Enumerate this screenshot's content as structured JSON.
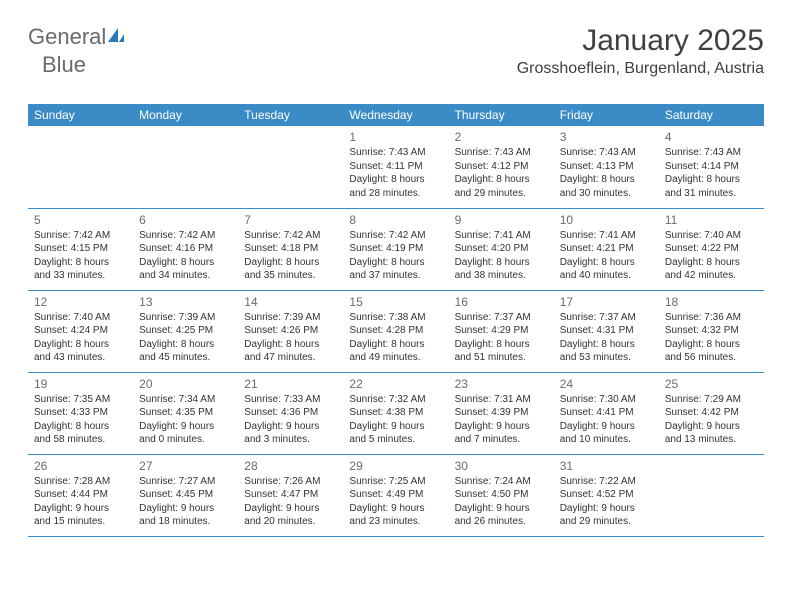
{
  "brand": {
    "text_part1": "General",
    "text_part2": "Blue",
    "color_gray": "#6a6a6a",
    "color_blue": "#2a7ab8"
  },
  "header": {
    "month_title": "January 2025",
    "location": "Grosshoeflein, Burgenland, Austria",
    "title_color": "#404040",
    "title_fontsize": 30,
    "location_fontsize": 16
  },
  "style": {
    "header_bg": "#3b8bc7",
    "header_text_color": "#ffffff",
    "row_border_color": "#3b8bc7",
    "daynum_color": "#6b6b6b",
    "body_text_color": "#333333",
    "cell_fontsize": 10,
    "th_fontsize": 12,
    "background_color": "#ffffff"
  },
  "weekdays": [
    "Sunday",
    "Monday",
    "Tuesday",
    "Wednesday",
    "Thursday",
    "Friday",
    "Saturday"
  ],
  "weeks": [
    [
      null,
      null,
      null,
      {
        "day": "1",
        "sunrise": "Sunrise: 7:43 AM",
        "sunset": "Sunset: 4:11 PM",
        "dl1": "Daylight: 8 hours",
        "dl2": "and 28 minutes."
      },
      {
        "day": "2",
        "sunrise": "Sunrise: 7:43 AM",
        "sunset": "Sunset: 4:12 PM",
        "dl1": "Daylight: 8 hours",
        "dl2": "and 29 minutes."
      },
      {
        "day": "3",
        "sunrise": "Sunrise: 7:43 AM",
        "sunset": "Sunset: 4:13 PM",
        "dl1": "Daylight: 8 hours",
        "dl2": "and 30 minutes."
      },
      {
        "day": "4",
        "sunrise": "Sunrise: 7:43 AM",
        "sunset": "Sunset: 4:14 PM",
        "dl1": "Daylight: 8 hours",
        "dl2": "and 31 minutes."
      }
    ],
    [
      {
        "day": "5",
        "sunrise": "Sunrise: 7:42 AM",
        "sunset": "Sunset: 4:15 PM",
        "dl1": "Daylight: 8 hours",
        "dl2": "and 33 minutes."
      },
      {
        "day": "6",
        "sunrise": "Sunrise: 7:42 AM",
        "sunset": "Sunset: 4:16 PM",
        "dl1": "Daylight: 8 hours",
        "dl2": "and 34 minutes."
      },
      {
        "day": "7",
        "sunrise": "Sunrise: 7:42 AM",
        "sunset": "Sunset: 4:18 PM",
        "dl1": "Daylight: 8 hours",
        "dl2": "and 35 minutes."
      },
      {
        "day": "8",
        "sunrise": "Sunrise: 7:42 AM",
        "sunset": "Sunset: 4:19 PM",
        "dl1": "Daylight: 8 hours",
        "dl2": "and 37 minutes."
      },
      {
        "day": "9",
        "sunrise": "Sunrise: 7:41 AM",
        "sunset": "Sunset: 4:20 PM",
        "dl1": "Daylight: 8 hours",
        "dl2": "and 38 minutes."
      },
      {
        "day": "10",
        "sunrise": "Sunrise: 7:41 AM",
        "sunset": "Sunset: 4:21 PM",
        "dl1": "Daylight: 8 hours",
        "dl2": "and 40 minutes."
      },
      {
        "day": "11",
        "sunrise": "Sunrise: 7:40 AM",
        "sunset": "Sunset: 4:22 PM",
        "dl1": "Daylight: 8 hours",
        "dl2": "and 42 minutes."
      }
    ],
    [
      {
        "day": "12",
        "sunrise": "Sunrise: 7:40 AM",
        "sunset": "Sunset: 4:24 PM",
        "dl1": "Daylight: 8 hours",
        "dl2": "and 43 minutes."
      },
      {
        "day": "13",
        "sunrise": "Sunrise: 7:39 AM",
        "sunset": "Sunset: 4:25 PM",
        "dl1": "Daylight: 8 hours",
        "dl2": "and 45 minutes."
      },
      {
        "day": "14",
        "sunrise": "Sunrise: 7:39 AM",
        "sunset": "Sunset: 4:26 PM",
        "dl1": "Daylight: 8 hours",
        "dl2": "and 47 minutes."
      },
      {
        "day": "15",
        "sunrise": "Sunrise: 7:38 AM",
        "sunset": "Sunset: 4:28 PM",
        "dl1": "Daylight: 8 hours",
        "dl2": "and 49 minutes."
      },
      {
        "day": "16",
        "sunrise": "Sunrise: 7:37 AM",
        "sunset": "Sunset: 4:29 PM",
        "dl1": "Daylight: 8 hours",
        "dl2": "and 51 minutes."
      },
      {
        "day": "17",
        "sunrise": "Sunrise: 7:37 AM",
        "sunset": "Sunset: 4:31 PM",
        "dl1": "Daylight: 8 hours",
        "dl2": "and 53 minutes."
      },
      {
        "day": "18",
        "sunrise": "Sunrise: 7:36 AM",
        "sunset": "Sunset: 4:32 PM",
        "dl1": "Daylight: 8 hours",
        "dl2": "and 56 minutes."
      }
    ],
    [
      {
        "day": "19",
        "sunrise": "Sunrise: 7:35 AM",
        "sunset": "Sunset: 4:33 PM",
        "dl1": "Daylight: 8 hours",
        "dl2": "and 58 minutes."
      },
      {
        "day": "20",
        "sunrise": "Sunrise: 7:34 AM",
        "sunset": "Sunset: 4:35 PM",
        "dl1": "Daylight: 9 hours",
        "dl2": "and 0 minutes."
      },
      {
        "day": "21",
        "sunrise": "Sunrise: 7:33 AM",
        "sunset": "Sunset: 4:36 PM",
        "dl1": "Daylight: 9 hours",
        "dl2": "and 3 minutes."
      },
      {
        "day": "22",
        "sunrise": "Sunrise: 7:32 AM",
        "sunset": "Sunset: 4:38 PM",
        "dl1": "Daylight: 9 hours",
        "dl2": "and 5 minutes."
      },
      {
        "day": "23",
        "sunrise": "Sunrise: 7:31 AM",
        "sunset": "Sunset: 4:39 PM",
        "dl1": "Daylight: 9 hours",
        "dl2": "and 7 minutes."
      },
      {
        "day": "24",
        "sunrise": "Sunrise: 7:30 AM",
        "sunset": "Sunset: 4:41 PM",
        "dl1": "Daylight: 9 hours",
        "dl2": "and 10 minutes."
      },
      {
        "day": "25",
        "sunrise": "Sunrise: 7:29 AM",
        "sunset": "Sunset: 4:42 PM",
        "dl1": "Daylight: 9 hours",
        "dl2": "and 13 minutes."
      }
    ],
    [
      {
        "day": "26",
        "sunrise": "Sunrise: 7:28 AM",
        "sunset": "Sunset: 4:44 PM",
        "dl1": "Daylight: 9 hours",
        "dl2": "and 15 minutes."
      },
      {
        "day": "27",
        "sunrise": "Sunrise: 7:27 AM",
        "sunset": "Sunset: 4:45 PM",
        "dl1": "Daylight: 9 hours",
        "dl2": "and 18 minutes."
      },
      {
        "day": "28",
        "sunrise": "Sunrise: 7:26 AM",
        "sunset": "Sunset: 4:47 PM",
        "dl1": "Daylight: 9 hours",
        "dl2": "and 20 minutes."
      },
      {
        "day": "29",
        "sunrise": "Sunrise: 7:25 AM",
        "sunset": "Sunset: 4:49 PM",
        "dl1": "Daylight: 9 hours",
        "dl2": "and 23 minutes."
      },
      {
        "day": "30",
        "sunrise": "Sunrise: 7:24 AM",
        "sunset": "Sunset: 4:50 PM",
        "dl1": "Daylight: 9 hours",
        "dl2": "and 26 minutes."
      },
      {
        "day": "31",
        "sunrise": "Sunrise: 7:22 AM",
        "sunset": "Sunset: 4:52 PM",
        "dl1": "Daylight: 9 hours",
        "dl2": "and 29 minutes."
      },
      null
    ]
  ]
}
